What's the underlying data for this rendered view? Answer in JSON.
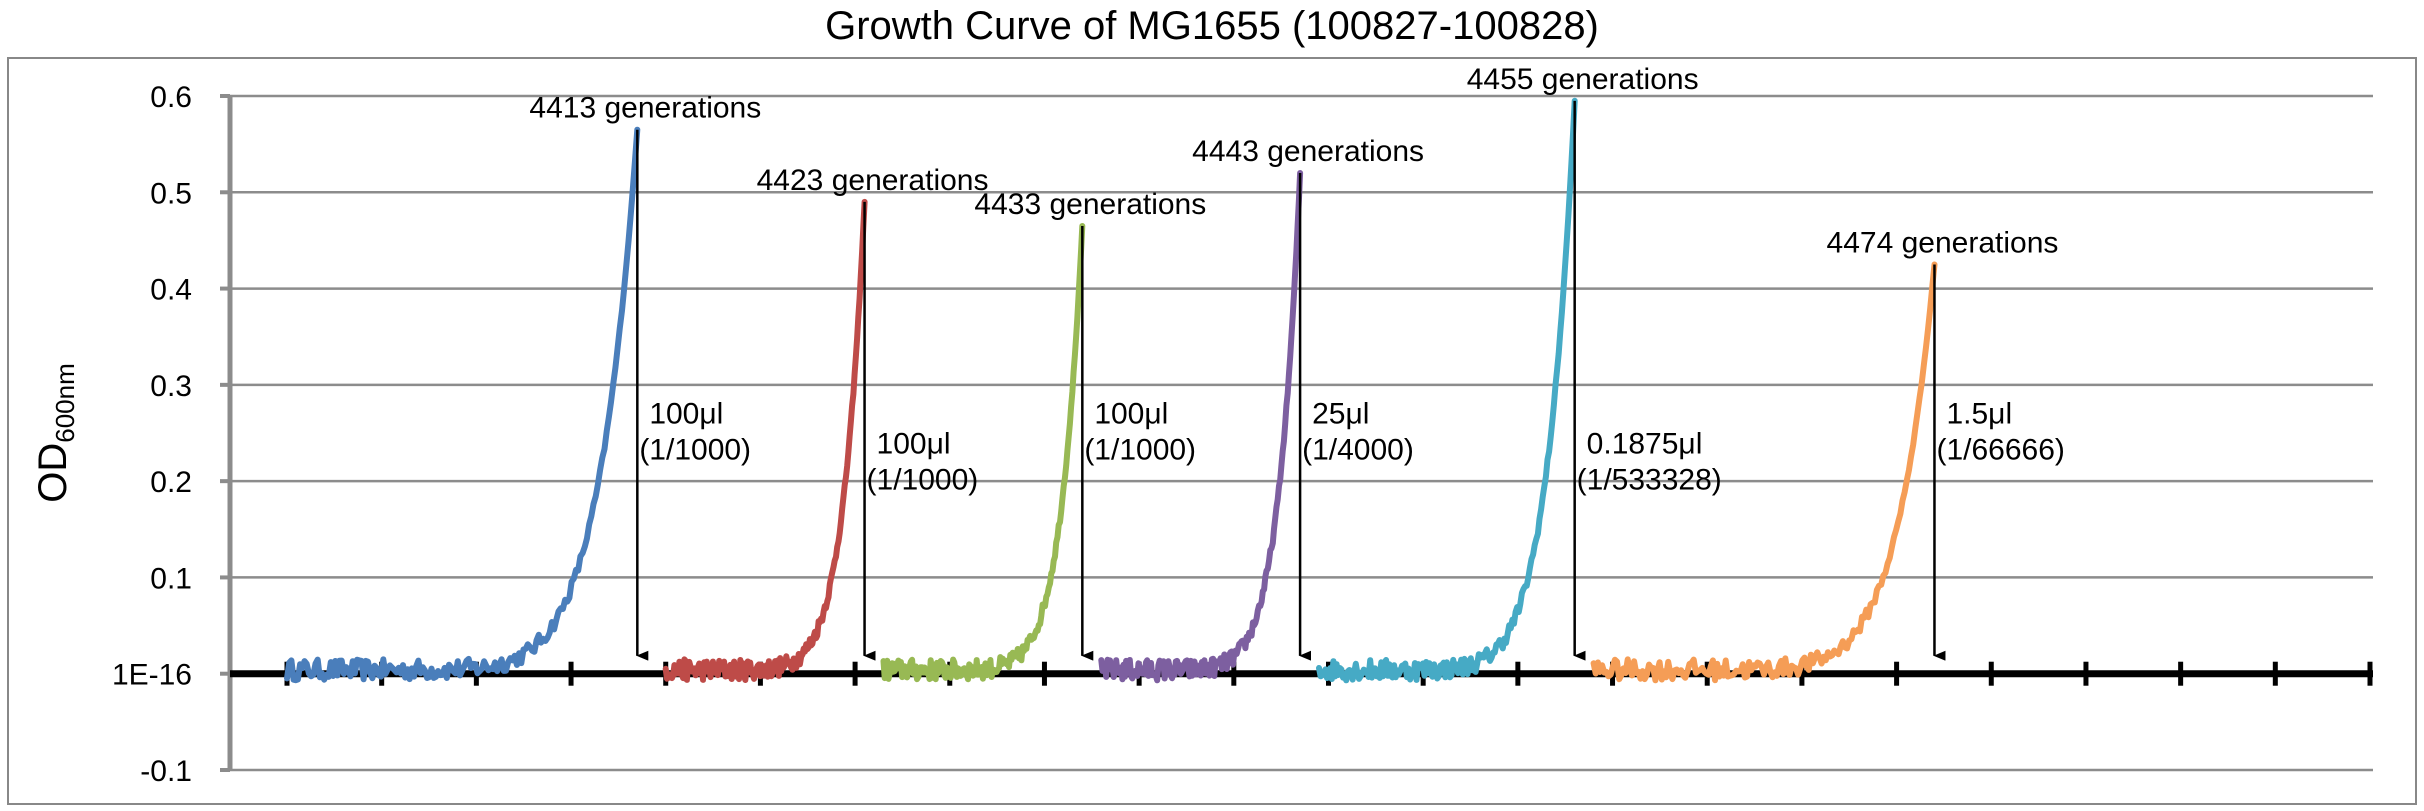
{
  "chart_data": {
    "type": "line",
    "title": "Growth Curve of MG1655 (100827-100828)",
    "ylabel": "OD",
    "ylabel_sub": "600nm",
    "ylim": [
      -0.1,
      0.6
    ],
    "yticks": [
      {
        "value": 0.6,
        "label": "0.6"
      },
      {
        "value": 0.5,
        "label": "0.5"
      },
      {
        "value": 0.4,
        "label": "0.4"
      },
      {
        "value": 0.3,
        "label": "0.3"
      },
      {
        "value": 0.2,
        "label": "0.2"
      },
      {
        "value": 0.1,
        "label": "0.1"
      },
      {
        "value": 0.0,
        "label": "1E-16"
      },
      {
        "value": -0.1,
        "label": "-0.1"
      }
    ],
    "xlim": [
      0,
      22
    ],
    "x_tick_count": 23,
    "grid": true,
    "series": [
      {
        "color": "#4a7ebb",
        "x_start": 0.0,
        "x_end": 3.7,
        "peak": 0.565
      },
      {
        "color": "#be4b48",
        "x_start": 4.0,
        "x_end": 6.1,
        "peak": 0.49
      },
      {
        "color": "#98b954",
        "x_start": 6.3,
        "x_end": 8.4,
        "peak": 0.465
      },
      {
        "color": "#7d5fa0",
        "x_start": 8.6,
        "x_end": 10.7,
        "peak": 0.52
      },
      {
        "color": "#46aac5",
        "x_start": 10.9,
        "x_end": 13.6,
        "peak": 0.595
      },
      {
        "color": "#f59d56",
        "x_start": 13.8,
        "x_end": 17.4,
        "peak": 0.425
      }
    ],
    "annotations": [
      {
        "label": "4413 generations",
        "x": 3.7,
        "peak": 0.565,
        "dilution": [
          "100μl",
          "(1/1000)"
        ]
      },
      {
        "label": "4423 generations",
        "x": 6.1,
        "peak": 0.49,
        "dilution": [
          "100μl",
          "(1/1000)"
        ]
      },
      {
        "label": "4433 generations",
        "x": 8.4,
        "peak": 0.465,
        "dilution": [
          "100μl",
          "(1/1000)"
        ]
      },
      {
        "label": "4443 generations",
        "x": 10.7,
        "peak": 0.52,
        "dilution": [
          "25μl",
          "(1/4000)"
        ]
      },
      {
        "label": "4455 generations",
        "x": 13.6,
        "peak": 0.595,
        "dilution": [
          "0.1875μl",
          "(1/533328)"
        ]
      },
      {
        "label": "4474 generations",
        "x": 17.4,
        "peak": 0.425,
        "dilution": [
          "1.5μl",
          "(1/66666)"
        ]
      }
    ]
  }
}
